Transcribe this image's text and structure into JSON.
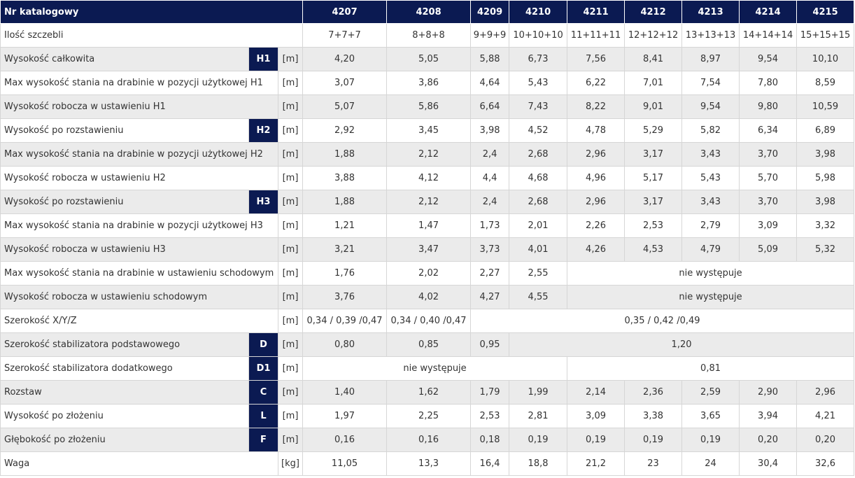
{
  "table": {
    "header": {
      "label": "Nr katalogowy",
      "models": [
        "4207",
        "4208",
        "4209",
        "4210",
        "4211",
        "4212",
        "4213",
        "4214",
        "4215"
      ]
    },
    "rows": [
      {
        "label": "Ilość szczebli",
        "values": [
          "7+7+7",
          "8+8+8",
          "9+9+9",
          "10+10+10",
          "11+11+11",
          "12+12+12",
          "13+13+13",
          "14+14+14",
          "15+15+15"
        ]
      },
      {
        "label": "Wysokość całkowita",
        "badge": "H1",
        "unit": "[m]",
        "values": [
          "4,20",
          "5,05",
          "5,88",
          "6,73",
          "7,56",
          "8,41",
          "8,97",
          "9,54",
          "10,10"
        ]
      },
      {
        "label": "Max wysokość stania na drabinie w pozycji użytkowej H1",
        "unit": "[m]",
        "values": [
          "3,07",
          "3,86",
          "4,64",
          "5,43",
          "6,22",
          "7,01",
          "7,54",
          "7,80",
          "8,59"
        ]
      },
      {
        "label": "Wysokość robocza w ustawieniu H1",
        "unit": "[m]",
        "values": [
          "5,07",
          "5,86",
          "6,64",
          "7,43",
          "8,22",
          "9,01",
          "9,54",
          "9,80",
          "10,59"
        ]
      },
      {
        "label": "Wysokość po rozstawieniu",
        "badge": "H2",
        "unit": "[m]",
        "values": [
          "2,92",
          "3,45",
          "3,98",
          "4,52",
          "4,78",
          "5,29",
          "5,82",
          "6,34",
          "6,89"
        ]
      },
      {
        "label": "Max wysokość stania na drabinie w pozycji użytkowej H2",
        "unit": "[m]",
        "values": [
          "1,88",
          "2,12",
          "2,4",
          "2,68",
          "2,96",
          "3,17",
          "3,43",
          "3,70",
          "3,98"
        ]
      },
      {
        "label": "Wysokość robocza w ustawieniu H2",
        "unit": "[m]",
        "values": [
          "3,88",
          "4,12",
          "4,4",
          "4,68",
          "4,96",
          "5,17",
          "5,43",
          "5,70",
          "5,98"
        ]
      },
      {
        "label": "Wysokość po rozstawieniu",
        "badge": "H3",
        "unit": "[m]",
        "values": [
          "1,88",
          "2,12",
          "2,4",
          "2,68",
          "2,96",
          "3,17",
          "3,43",
          "3,70",
          "3,98"
        ]
      },
      {
        "label": "Max wysokość stania na drabinie w pozycji użytkowej H3",
        "unit": "[m]",
        "values": [
          "1,21",
          "1,47",
          "1,73",
          "2,01",
          "2,26",
          "2,53",
          "2,79",
          "3,09",
          "3,32"
        ]
      },
      {
        "label": "Wysokość robocza w ustawieniu H3",
        "unit": "[m]",
        "values": [
          "3,21",
          "3,47",
          "3,73",
          "4,01",
          "4,26",
          "4,53",
          "4,79",
          "5,09",
          "5,32"
        ]
      },
      {
        "label": "Max wysokość stania na drabinie w ustawieniu schodowym",
        "unit": "[m]",
        "values": [
          "1,76",
          "2,02",
          "2,27",
          "2,55",
          "nie występuje"
        ]
      },
      {
        "label": "Wysokość robocza w ustawieniu schodowym",
        "unit": "[m]",
        "values": [
          "3,76",
          "4,02",
          "4,27",
          "4,55",
          "nie występuje"
        ]
      },
      {
        "label": "Szerokość X/Y/Z",
        "unit": "[m]",
        "values": [
          "0,34 / 0,39 /0,47",
          "0,34 / 0,40 /0,47",
          "0,35 / 0,42 /0,49"
        ]
      },
      {
        "label": "Szerokość stabilizatora podstawowego",
        "badge": "D",
        "unit": "[m]",
        "values": [
          "0,80",
          "0,85",
          "0,95",
          "1,20"
        ]
      },
      {
        "label": "Szerokość stabilizatora dodatkowego",
        "badge": "D1",
        "unit": "[m]",
        "values": [
          "nie występuje",
          "0,81"
        ]
      },
      {
        "label": "Rozstaw",
        "badge": "C",
        "unit": "[m]",
        "values": [
          "1,40",
          "1,62",
          "1,79",
          "1,99",
          "2,14",
          "2,36",
          "2,59",
          "2,90",
          "2,96"
        ]
      },
      {
        "label": "Wysokość po złożeniu",
        "badge": "L",
        "unit": "[m]",
        "values": [
          "1,97",
          "2,25",
          "2,53",
          "2,81",
          "3,09",
          "3,38",
          "3,65",
          "3,94",
          "4,21"
        ]
      },
      {
        "label": "Głębokość po złożeniu",
        "badge": "F",
        "unit": "[m]",
        "values": [
          "0,16",
          "0,16",
          "0,18",
          "0,19",
          "0,19",
          "0,19",
          "0,19",
          "0,20",
          "0,20"
        ]
      },
      {
        "label": "Waga",
        "unit": "[kg]",
        "values": [
          "11,05",
          "13,3",
          "16,4",
          "18,8",
          "21,2",
          "23",
          "24",
          "30,4",
          "32,6"
        ]
      }
    ]
  }
}
